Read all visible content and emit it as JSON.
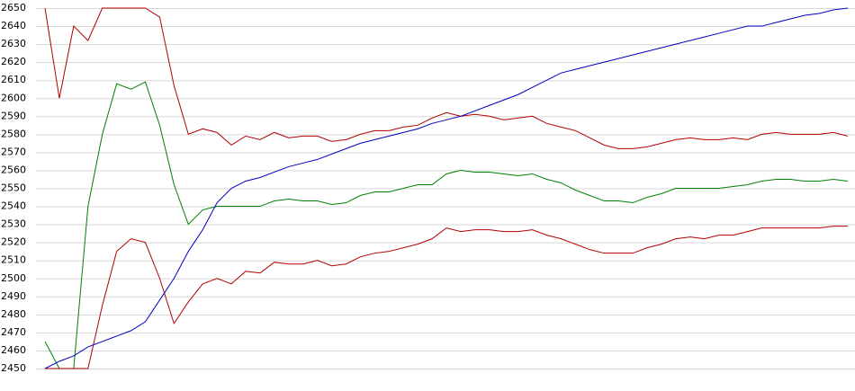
{
  "chart_data": {
    "type": "line",
    "categories": [
      null,
      null,
      null,
      null,
      null,
      null,
      null,
      null,
      null,
      null,
      null,
      null,
      null,
      null,
      null,
      null,
      null,
      null,
      null,
      null,
      null,
      null,
      null,
      null,
      null,
      null,
      null,
      null,
      null,
      null,
      null,
      null,
      null,
      null,
      null,
      null,
      null,
      null,
      null,
      null,
      null,
      null,
      null,
      null,
      null,
      null,
      null,
      null,
      null,
      null,
      null,
      null,
      null,
      null,
      null,
      null,
      null
    ],
    "series": [
      {
        "color": "#b00000",
        "values": [
          2650,
          2600,
          2640,
          2632,
          2650,
          2650,
          2650,
          2650,
          2645,
          2607,
          2580,
          2583,
          2581,
          2574,
          2579,
          2577,
          2581,
          2578,
          2579,
          2579,
          2576,
          2577,
          2580,
          2582,
          2582,
          2584,
          2585,
          2589,
          2592,
          2590,
          2591,
          2590,
          2588,
          2589,
          2590,
          2586,
          2584,
          2582,
          2578,
          2574,
          2572,
          2572,
          2573,
          2575,
          2577,
          2578,
          2577,
          2577,
          2578,
          2577,
          2580,
          2581,
          2580,
          2580,
          2580,
          2581,
          2579
        ]
      },
      {
        "color": "#008000",
        "values": [
          2465,
          2450,
          2450,
          2540,
          2580,
          2608,
          2605,
          2609,
          2585,
          2552,
          2530,
          2538,
          2540,
          2540,
          2540,
          2540,
          2543,
          2544,
          2543,
          2543,
          2541,
          2542,
          2546,
          2548,
          2548,
          2550,
          2552,
          2552,
          2558,
          2560,
          2559,
          2559,
          2558,
          2557,
          2558,
          2555,
          2553,
          2549,
          2546,
          2543,
          2543,
          2542,
          2545,
          2547,
          2550,
          2550,
          2550,
          2550,
          2551,
          2552,
          2554,
          2555,
          2555,
          2554,
          2554,
          2555,
          2554
        ]
      },
      {
        "color": "#b00000",
        "values": [
          2450,
          2450,
          2450,
          2450,
          2485,
          2515,
          2522,
          2520,
          2500,
          2475,
          2487,
          2497,
          2500,
          2497,
          2504,
          2503,
          2509,
          2508,
          2508,
          2510,
          2507,
          2508,
          2512,
          2514,
          2515,
          2517,
          2519,
          2522,
          2528,
          2526,
          2527,
          2527,
          2526,
          2526,
          2527,
          2524,
          2522,
          2519,
          2516,
          2514,
          2514,
          2514,
          2517,
          2519,
          2522,
          2523,
          2522,
          2524,
          2524,
          2526,
          2528,
          2528,
          2528,
          2528,
          2528,
          2529,
          2529
        ]
      },
      {
        "color": "#0000c0",
        "values": [
          2450,
          2454,
          2457,
          2462,
          2465,
          2468,
          2471,
          2476,
          2488,
          2500,
          2515,
          2527,
          2542,
          2550,
          2554,
          2556,
          2559,
          2562,
          2564,
          2566,
          2569,
          2572,
          2575,
          2577,
          2579,
          2581,
          2583,
          2586,
          2588,
          2590,
          2593,
          2596,
          2599,
          2602,
          2606,
          2610,
          2614,
          2616,
          2618,
          2620,
          2622,
          2624,
          2626,
          2628,
          2630,
          2632,
          2634,
          2636,
          2638,
          2640,
          2640,
          2642,
          2644,
          2646,
          2647,
          2649,
          2650
        ]
      }
    ],
    "ylim": [
      2450,
      2650
    ],
    "yticks": [
      2450,
      2460,
      2470,
      2480,
      2490,
      2500,
      2510,
      2520,
      2530,
      2540,
      2550,
      2560,
      2570,
      2580,
      2590,
      2600,
      2610,
      2620,
      2630,
      2640,
      2650
    ],
    "grid": true
  }
}
